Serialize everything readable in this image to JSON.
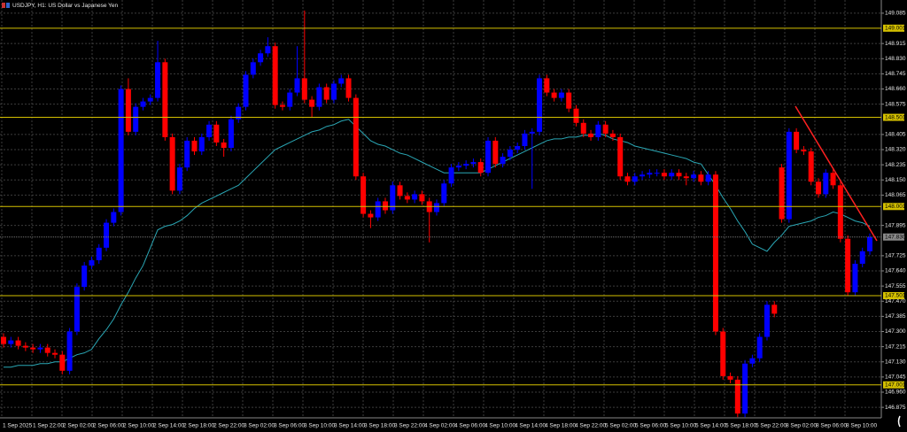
{
  "chart_data": {
    "type": "candlestick",
    "title": "USDJPY, H1:  US Dollar vs Japanese Yen",
    "bull_color": "#0000ff",
    "bear_color": "#ff0000",
    "ylim": [
      146.816,
      149.159
    ],
    "yticks": [
      149.085,
      148.915,
      {
        "value": 148.83,
        "label": "148.830"
      },
      148.745,
      {
        "value": 148.66,
        "label": "148.660"
      },
      148.575,
      148.405,
      {
        "value": 148.32,
        "label": "148.320"
      },
      148.235,
      {
        "value": 148.15,
        "label": "148.150"
      },
      148.065,
      147.895,
      147.725,
      {
        "value": 147.64,
        "label": "147.640"
      },
      147.555,
      {
        "value": 147.47,
        "label": "147.470"
      },
      147.385,
      {
        "value": 147.3,
        "label": "147.300"
      },
      147.215,
      {
        "value": 147.13,
        "label": "147.130"
      },
      147.045,
      {
        "value": 146.96,
        "label": "146.960"
      },
      146.875
    ],
    "grid": true,
    "levels": [
      149.001,
      148.501,
      148.001,
      147.501,
      147.001
    ],
    "levels_color": "#d4c000",
    "current_price": {
      "value": 147.83,
      "label": "147.830"
    },
    "x_labels": [
      "1 Sep 2025",
      "1 Sep 22:00",
      "2 Sep 02:00",
      "2 Sep 06:00",
      "2 Sep 10:00",
      "2 Sep 14:00",
      "2 Sep 18:00",
      "2 Sep 22:00",
      "3 Sep 02:00",
      "3 Sep 06:00",
      "3 Sep 10:00",
      "3 Sep 14:00",
      "3 Sep 18:00",
      "3 Sep 22:00",
      "4 Sep 02:00",
      "4 Sep 06:00",
      "4 Sep 10:00",
      "4 Sep 14:00",
      "4 Sep 18:00",
      "4 Sep 22:00",
      "5 Sep 02:00",
      "5 Sep 06:00",
      "5 Sep 10:00",
      "5 Sep 14:00",
      "5 Sep 18:00",
      "5 Sep 22:00",
      "8 Sep 02:00",
      "8 Sep 06:00",
      "8 Sep 10:00"
    ],
    "open": [
      147.27,
      147.23,
      147.25,
      147.22,
      147.21,
      147.2,
      147.21,
      147.18,
      147.17,
      147.08,
      147.3,
      147.55,
      147.67,
      147.7,
      147.77,
      147.91,
      147.97,
      148.66,
      148.42,
      148.56,
      148.59,
      148.61,
      148.81,
      148.39,
      148.09,
      148.22,
      148.37,
      148.31,
      148.39,
      148.46,
      148.36,
      148.33,
      148.49,
      148.56,
      148.74,
      148.81,
      148.86,
      148.9,
      148.57,
      148.56,
      148.64,
      148.72,
      148.6,
      148.56,
      148.67,
      148.6,
      148.69,
      148.72,
      148.61,
      148.17,
      147.96,
      147.94,
      148.03,
      147.98,
      148.12,
      148.06,
      148.04,
      148.07,
      148.03,
      147.97,
      148.02,
      148.13,
      148.22,
      148.23,
      148.24,
      148.25,
      148.19,
      148.37,
      148.24,
      148.28,
      148.32,
      148.34,
      148.41,
      148.42,
      148.72,
      148.64,
      148.61,
      148.64,
      148.55,
      148.47,
      148.41,
      148.39,
      148.46,
      148.41,
      148.39,
      148.17,
      148.14,
      148.17,
      148.18,
      148.19,
      148.19,
      148.17,
      148.19,
      148.17,
      148.16,
      148.18,
      148.14,
      148.18,
      147.3,
      147.05,
      147.03,
      146.84,
      147.12,
      147.15,
      147.27,
      147.45,
      148.22,
      147.93,
      148.42,
      148.32,
      148.31,
      148.14,
      148.07,
      148.19,
      148.12,
      147.82,
      147.52,
      147.68,
      147.75
    ],
    "high": [
      147.29,
      147.27,
      147.27,
      147.24,
      147.23,
      147.23,
      147.23,
      147.2,
      147.19,
      147.32,
      147.57,
      147.69,
      147.72,
      147.79,
      147.93,
      147.99,
      148.68,
      148.72,
      148.58,
      148.61,
      148.63,
      148.93,
      148.83,
      148.41,
      148.24,
      148.39,
      148.39,
      148.41,
      148.48,
      148.48,
      148.38,
      148.51,
      148.58,
      148.76,
      148.83,
      148.88,
      148.95,
      148.92,
      148.59,
      148.66,
      148.9,
      149.1,
      148.62,
      148.69,
      148.69,
      148.71,
      148.74,
      148.74,
      148.63,
      148.19,
      147.98,
      148.05,
      148.05,
      148.14,
      148.14,
      148.08,
      148.09,
      148.09,
      148.05,
      148.04,
      148.15,
      148.24,
      148.25,
      148.26,
      148.27,
      148.27,
      148.39,
      148.39,
      148.3,
      148.34,
      148.36,
      148.43,
      148.44,
      148.74,
      148.74,
      148.66,
      148.66,
      148.66,
      148.57,
      148.49,
      148.43,
      148.48,
      148.48,
      148.43,
      148.41,
      148.19,
      148.19,
      148.2,
      148.21,
      148.21,
      148.21,
      148.21,
      148.21,
      148.19,
      148.2,
      148.2,
      148.2,
      148.2,
      147.32,
      147.07,
      147.05,
      147.14,
      147.17,
      147.29,
      147.47,
      147.47,
      148.24,
      148.44,
      148.44,
      148.34,
      148.33,
      148.16,
      148.21,
      148.21,
      148.14,
      147.84,
      147.7,
      147.77,
      147.85
    ],
    "low": [
      147.21,
      147.21,
      147.2,
      147.19,
      147.18,
      147.18,
      147.16,
      147.15,
      147.06,
      147.06,
      147.28,
      147.53,
      147.65,
      147.68,
      147.75,
      147.89,
      147.95,
      148.4,
      148.4,
      148.54,
      148.57,
      148.59,
      148.37,
      148.07,
      148.07,
      148.2,
      148.29,
      148.29,
      148.37,
      148.34,
      148.28,
      148.31,
      148.47,
      148.54,
      148.72,
      148.79,
      148.84,
      148.55,
      148.54,
      148.54,
      148.62,
      148.58,
      148.5,
      148.54,
      148.58,
      148.58,
      148.67,
      148.59,
      148.15,
      147.94,
      147.88,
      147.92,
      147.96,
      147.96,
      148.04,
      148.02,
      148.02,
      148.01,
      147.8,
      147.95,
      148.0,
      148.11,
      148.2,
      148.21,
      148.22,
      148.17,
      148.17,
      148.22,
      148.22,
      148.26,
      148.3,
      148.32,
      148.1,
      148.4,
      148.62,
      148.59,
      148.59,
      148.53,
      148.45,
      148.39,
      148.37,
      148.37,
      148.39,
      148.37,
      148.15,
      148.12,
      148.12,
      148.15,
      148.16,
      148.17,
      148.15,
      148.15,
      148.15,
      148.12,
      148.14,
      148.12,
      148.12,
      147.28,
      147.03,
      147.01,
      146.82,
      146.82,
      147.1,
      147.13,
      147.25,
      147.38,
      147.91,
      147.91,
      148.3,
      148.29,
      148.12,
      148.05,
      148.05,
      148.1,
      147.8,
      147.5,
      147.5,
      147.66,
      147.73
    ],
    "close": [
      147.23,
      147.25,
      147.22,
      147.21,
      147.2,
      147.21,
      147.18,
      147.17,
      147.08,
      147.3,
      147.55,
      147.67,
      147.7,
      147.77,
      147.91,
      147.97,
      148.66,
      148.42,
      148.56,
      148.59,
      148.61,
      148.81,
      148.39,
      148.09,
      148.22,
      148.37,
      148.31,
      148.39,
      148.46,
      148.36,
      148.33,
      148.49,
      148.56,
      148.74,
      148.81,
      148.86,
      148.9,
      148.57,
      148.56,
      148.64,
      148.72,
      148.6,
      148.56,
      148.67,
      148.6,
      148.69,
      148.72,
      148.61,
      148.17,
      147.96,
      147.94,
      148.03,
      147.98,
      148.12,
      148.06,
      148.04,
      148.07,
      148.03,
      147.97,
      148.02,
      148.13,
      148.22,
      148.23,
      148.24,
      148.25,
      148.19,
      148.37,
      148.24,
      148.28,
      148.32,
      148.34,
      148.41,
      148.42,
      148.72,
      148.64,
      148.61,
      148.64,
      148.55,
      148.47,
      148.41,
      148.39,
      148.46,
      148.41,
      148.39,
      148.17,
      148.14,
      148.17,
      148.18,
      148.19,
      148.19,
      148.17,
      148.19,
      148.17,
      148.16,
      148.18,
      148.14,
      148.18,
      147.3,
      147.05,
      147.03,
      146.84,
      147.12,
      147.15,
      147.27,
      147.45,
      147.4,
      147.93,
      148.42,
      148.32,
      148.31,
      148.14,
      148.07,
      148.19,
      148.12,
      147.82,
      147.52,
      147.68,
      147.75,
      147.83
    ],
    "ma": {
      "color": "#2aa7b5",
      "values": [
        147.1,
        147.1,
        147.11,
        147.11,
        147.11,
        147.12,
        147.12,
        147.13,
        147.13,
        147.15,
        147.17,
        147.18,
        147.2,
        147.26,
        147.31,
        147.37,
        147.45,
        147.52,
        147.6,
        147.67,
        147.77,
        147.87,
        147.89,
        147.9,
        147.92,
        147.95,
        147.99,
        148.02,
        148.04,
        148.06,
        148.08,
        148.1,
        148.12,
        148.16,
        148.2,
        148.24,
        148.28,
        148.32,
        148.34,
        148.36,
        148.38,
        148.4,
        148.42,
        148.43,
        148.45,
        148.46,
        148.48,
        148.49,
        148.45,
        148.41,
        148.37,
        148.35,
        148.34,
        148.32,
        148.3,
        148.29,
        148.27,
        148.25,
        148.23,
        148.21,
        148.19,
        148.19,
        148.19,
        148.19,
        148.19,
        148.19,
        148.21,
        148.23,
        148.25,
        148.27,
        148.29,
        148.31,
        148.33,
        148.35,
        148.37,
        148.38,
        148.38,
        148.39,
        148.39,
        148.4,
        148.4,
        148.41,
        148.4,
        148.38,
        148.37,
        148.36,
        148.34,
        148.33,
        148.32,
        148.31,
        148.3,
        148.29,
        148.28,
        148.27,
        148.25,
        148.24,
        148.18,
        148.12,
        148.05,
        147.99,
        147.92,
        147.86,
        147.79,
        147.77,
        147.75,
        147.8,
        147.84,
        147.89,
        147.9,
        147.91,
        147.92,
        147.94,
        147.95,
        147.97,
        147.96,
        147.94,
        147.92,
        147.91,
        147.89
      ]
    }
  }
}
